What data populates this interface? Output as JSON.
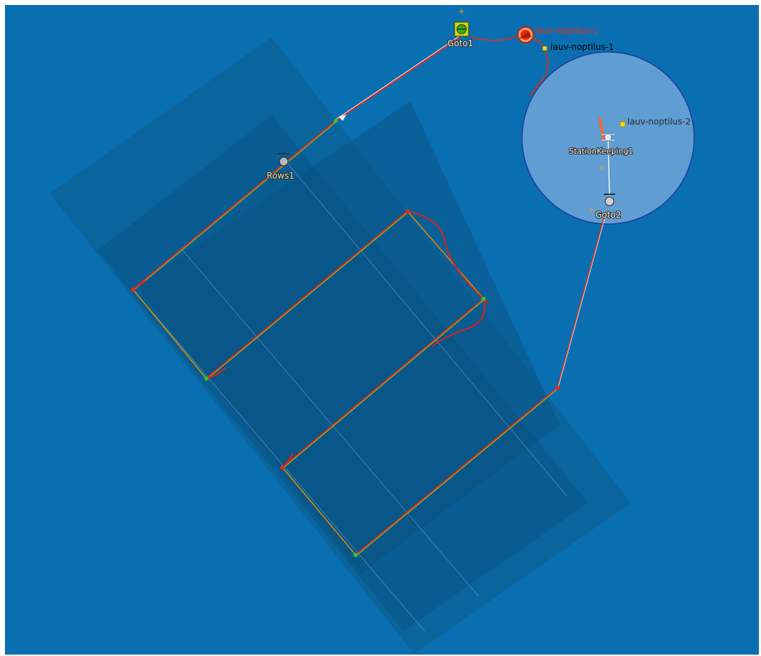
{
  "map": {
    "background_color": "#0a6fb0",
    "survey_area_color": "#0b5a8c",
    "station_circle_color": "#6fa6d8"
  },
  "maneuvers": {
    "goto1": {
      "label": "Goto1",
      "icon": "goto-icon"
    },
    "rows1": {
      "label": "Rows1",
      "icon": "rows-icon"
    },
    "stationkeeping1": {
      "label": "StationKeeping1",
      "icon": "station-keeping-icon"
    },
    "goto2": {
      "label": "Goto2",
      "icon": "goto-icon"
    }
  },
  "vehicles": {
    "nop1_track": {
      "label": "lauv-noptilus-1",
      "color": "#e82a1a"
    },
    "nop1": {
      "label": "lauv-noptilus-1",
      "color": "#f5d80e"
    },
    "nop2": {
      "label": "lauv-noptilus-2",
      "color": "#f5d80e"
    }
  },
  "plan_colors": {
    "planned_path": "#e8291c",
    "executed_path": "#7ad11e",
    "waypoint_ok": "#31c431",
    "waypoint_pending": "#e8291c"
  }
}
